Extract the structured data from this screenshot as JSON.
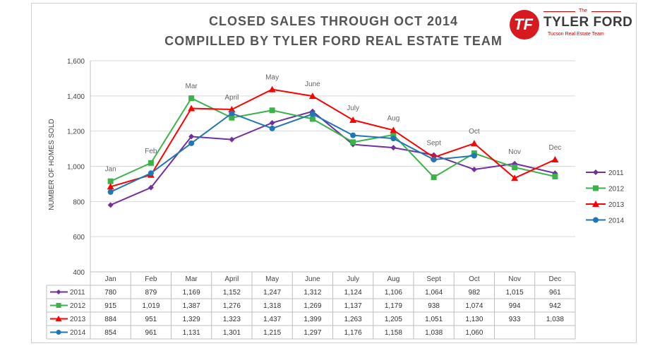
{
  "header": {
    "title_line1": "CLOSED SALES THROUGH OCT 2014",
    "title_line2": "COMPILLED BY TYLER FORD REAL ESTATE TEAM"
  },
  "logo": {
    "the": "The",
    "brand": "TYLER FORD",
    "sub": "Tucson Real Estate Team",
    "mark": "TF",
    "color": "#d71920"
  },
  "chart_data": {
    "type": "line",
    "ylabel": "NUMBER OF HOMES SOLD",
    "ylim": [
      400,
      1600
    ],
    "yticks": [
      400,
      600,
      800,
      1000,
      1200,
      1400,
      1600
    ],
    "ytick_labels": [
      "400",
      "600",
      "800",
      "1,000",
      "1,200",
      "1,400",
      "1,600"
    ],
    "categories": [
      "Jan",
      "Feb",
      "Mar",
      "April",
      "May",
      "June",
      "July",
      "Aug",
      "Sept",
      "Oct",
      "Nov",
      "Dec"
    ],
    "legend_position": "right",
    "grid": true,
    "series": [
      {
        "name": "2011",
        "color": "#7030a0",
        "marker": "diamond",
        "values": [
          780,
          879,
          1169,
          1152,
          1247,
          1312,
          1124,
          1106,
          1064,
          982,
          1015,
          961
        ]
      },
      {
        "name": "2012",
        "color": "#3cb34a",
        "marker": "square",
        "values": [
          915,
          1019,
          1387,
          1276,
          1318,
          1269,
          1137,
          1179,
          938,
          1074,
          994,
          942
        ]
      },
      {
        "name": "2013",
        "color": "#ff0000",
        "marker": "triangle",
        "values": [
          884,
          951,
          1329,
          1323,
          1437,
          1399,
          1263,
          1205,
          1051,
          1130,
          933,
          1038
        ]
      },
      {
        "name": "2014",
        "color": "#1f77b4",
        "marker": "circle",
        "values": [
          854,
          961,
          1131,
          1301,
          1215,
          1297,
          1176,
          1158,
          1038,
          1060,
          null,
          null
        ]
      }
    ],
    "table": {
      "rows": [
        [
          "780",
          "879",
          "1,169",
          "1,152",
          "1,247",
          "1,312",
          "1,124",
          "1,106",
          "1,064",
          "982",
          "1,015",
          "961"
        ],
        [
          "915",
          "1,019",
          "1,387",
          "1,276",
          "1,318",
          "1,269",
          "1,137",
          "1,179",
          "938",
          "1,074",
          "994",
          "942"
        ],
        [
          "884",
          "951",
          "1,329",
          "1,323",
          "1,437",
          "1,399",
          "1,263",
          "1,205",
          "1,051",
          "1,130",
          "933",
          "1,038"
        ],
        [
          "854",
          "961",
          "1,131",
          "1,301",
          "1,215",
          "1,297",
          "1,176",
          "1,158",
          "1,038",
          "1,060",
          "",
          ""
        ]
      ]
    }
  }
}
